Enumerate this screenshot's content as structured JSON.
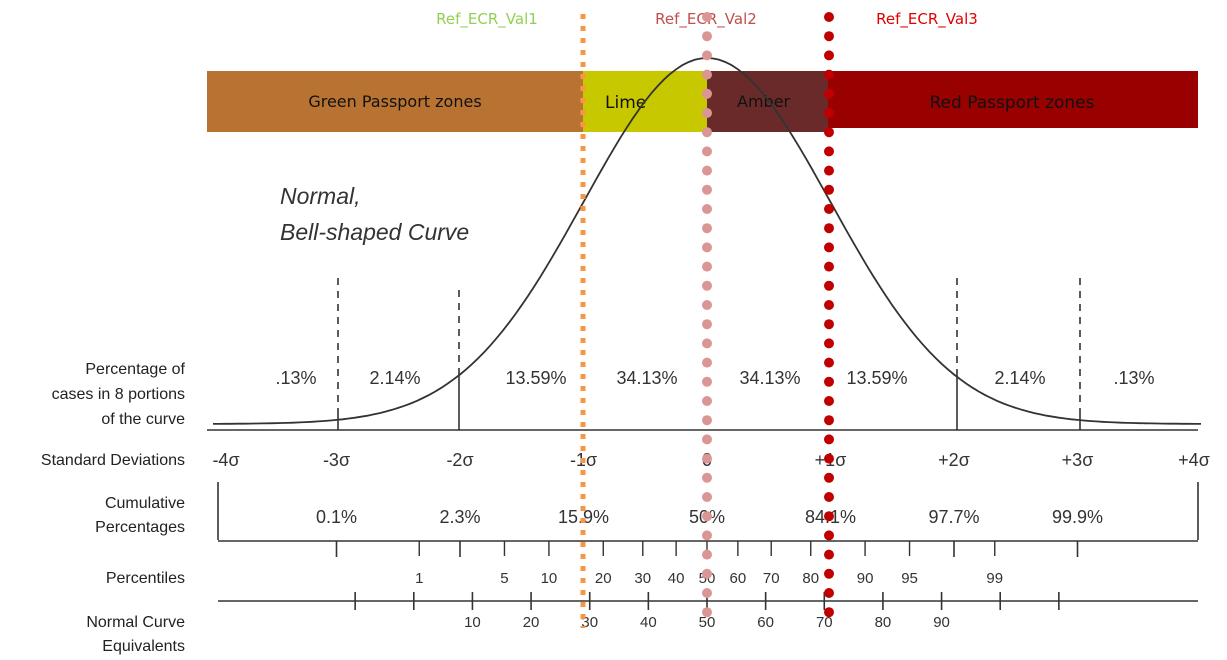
{
  "ref_lines": [
    {
      "label": "Ref_ECR_Val1",
      "label_color": "#92d050",
      "line_color": "#f79646",
      "style": "square-dots"
    },
    {
      "label": "Ref_ECR_Val2",
      "label_color": "#c0504d",
      "line_color": "#d99694",
      "style": "round-dots"
    },
    {
      "label": "Ref_ECR_Val3",
      "label_color": "#e00000",
      "line_color": "#c00000",
      "style": "round-dots"
    }
  ],
  "zones": [
    {
      "label": "Green Passport zones",
      "color": "#b87333",
      "text_color": "#111111"
    },
    {
      "label": "Lime",
      "color": "#c8c800",
      "text_color": "#111111"
    },
    {
      "label": "Amber",
      "color": "#6b2a2a",
      "text_color": "#111111"
    },
    {
      "label": "Red Passport zones",
      "color": "#990000",
      "text_color": "#111111"
    }
  ],
  "curve_title_line1": "Normal,",
  "curve_title_line2": "Bell-shaped Curve",
  "row_labels": {
    "percentage_1": "Percentage of",
    "percentage_2": "cases in 8 portions",
    "percentage_3": "of the curve",
    "std_dev": "Standard Deviations",
    "cumulative_1": "Cumulative",
    "cumulative_2": "Percentages",
    "percentiles": "Percentiles",
    "nce_1": "Normal Curve",
    "nce_2": "Equivalents"
  },
  "portions": [
    ".13%",
    "2.14%",
    "13.59%",
    "34.13%",
    "34.13%",
    "13.59%",
    "2.14%",
    ".13%"
  ],
  "std_devs": [
    "-4σ",
    "-3σ",
    "-2σ",
    "-1σ",
    "0",
    "+1σ",
    "+2σ",
    "+3σ",
    "+4σ"
  ],
  "cumulative": [
    "0.1%",
    "2.3%",
    "15.9%",
    "50%",
    "84.1%",
    "97.7%",
    "99.9%"
  ],
  "percentiles": [
    {
      "label": "1",
      "z": -2.33
    },
    {
      "label": "5",
      "z": -1.64
    },
    {
      "label": "10",
      "z": -1.28
    },
    {
      "label": "20",
      "z": -0.84
    },
    {
      "label": "30",
      "z": -0.52
    },
    {
      "label": "40",
      "z": -0.25
    },
    {
      "label": "50",
      "z": 0
    },
    {
      "label": "60",
      "z": 0.25
    },
    {
      "label": "70",
      "z": 0.52
    },
    {
      "label": "80",
      "z": 0.84
    },
    {
      "label": "90",
      "z": 1.28
    },
    {
      "label": "95",
      "z": 1.64
    },
    {
      "label": "99",
      "z": 2.33
    }
  ],
  "nce": [
    "10",
    "20",
    "30",
    "40",
    "50",
    "60",
    "70",
    "80",
    "90"
  ]
}
